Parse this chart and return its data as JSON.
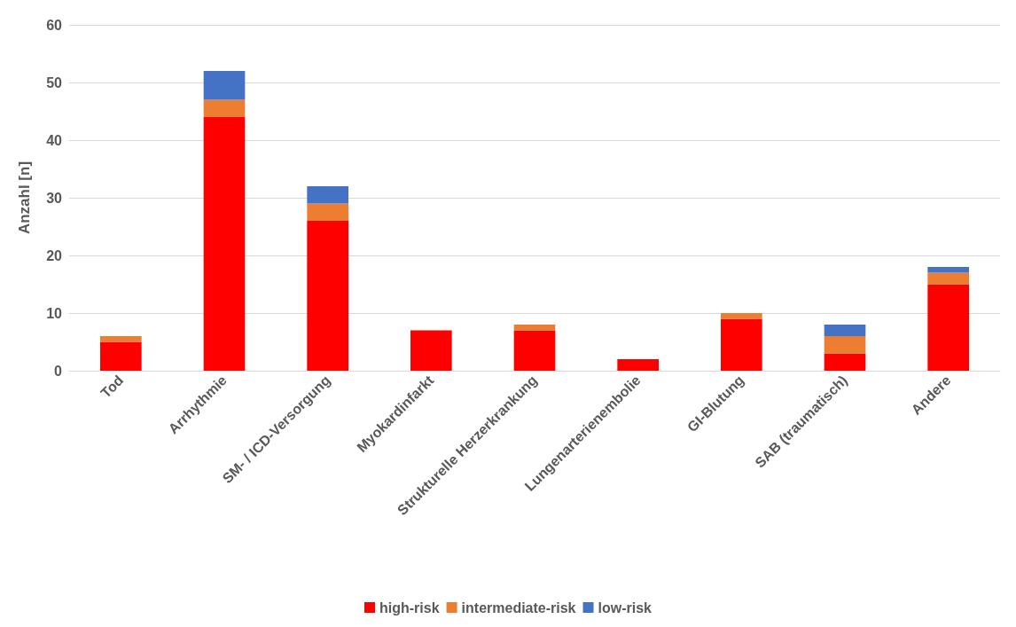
{
  "chart_data": {
    "type": "bar",
    "stacked": true,
    "ylabel": "Anzahl [n]",
    "categories": [
      "Tod",
      "Arrhythmie",
      "SM- / ICD-Versorgung",
      "Myokardinfarkt",
      "Strukturelle Herzerkrankung",
      "Lungenarterienembolie",
      "GI-Blutung",
      "SAB (traumatisch)",
      "Andere"
    ],
    "series": [
      {
        "name": "high-risk",
        "color": "#ff0000",
        "values": [
          5,
          44,
          26,
          7,
          7,
          2,
          9,
          3,
          15
        ]
      },
      {
        "name": "intermediate-risk",
        "color": "#ed7d31",
        "values": [
          1,
          3,
          3,
          0,
          1,
          0,
          1,
          3,
          2
        ]
      },
      {
        "name": "low-risk",
        "color": "#4472c4",
        "values": [
          0,
          5,
          3,
          0,
          0,
          0,
          0,
          2,
          1
        ]
      }
    ],
    "ylim": [
      0,
      60
    ],
    "yticks": [
      0,
      10,
      20,
      30,
      40,
      50,
      60
    ],
    "grid": "y",
    "legend": "bottom"
  }
}
